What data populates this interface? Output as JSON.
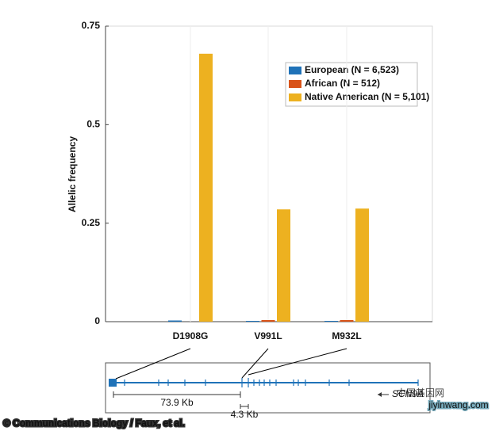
{
  "chart_data": {
    "type": "bar",
    "y_label": "Allelic frequency",
    "categories": [
      "D1908G",
      "V991L",
      "M932L"
    ],
    "series": [
      {
        "name": "European (N = 6,523)",
        "color": "#1f72b8",
        "values": [
          0.003,
          0.002,
          0.002
        ]
      },
      {
        "name": "African (N = 512)",
        "color": "#d95319",
        "values": [
          0,
          0.004,
          0.004
        ]
      },
      {
        "name": "Native American (N = 5,101)",
        "color": "#edb120",
        "values": [
          0.68,
          0.285,
          0.287
        ]
      }
    ],
    "ylim": [
      0,
      0.75
    ],
    "yticks": [
      0,
      0.25,
      0.5,
      0.75
    ],
    "legend": "upper right"
  },
  "gene_diagram": {
    "gene": "SCN9A",
    "distance_labels": [
      "73.9 Kb",
      "4.3 Kb"
    ]
  },
  "credit": "© Communications Biology / Faux, et al.",
  "watermark": {
    "name": "中国基因网",
    "url": "jiyinwang.com"
  }
}
